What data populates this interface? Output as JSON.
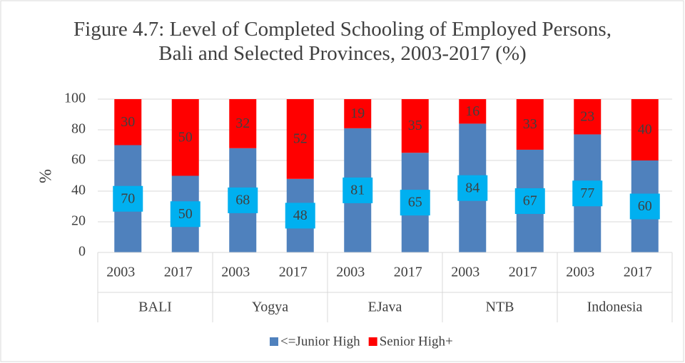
{
  "chart_data": {
    "type": "stacked_bar",
    "title": "Figure 4.7: Level of Completed Schooling of Employed Persons, Bali and Selected Provinces, 2003-2017 (%)",
    "y_label": "%",
    "categories": [
      "2003",
      "2017",
      "2003",
      "2017",
      "2003",
      "2017",
      "2003",
      "2017",
      "2003",
      "2017"
    ],
    "groups": [
      "BALI",
      "Yogya",
      "EJava",
      "NTB",
      "Indonesia"
    ],
    "series": [
      {
        "name": "<=Junior High",
        "color": "#4f81bd",
        "label_box": "#00b0f0",
        "values": [
          70,
          50,
          68,
          48,
          81,
          65,
          84,
          67,
          77,
          60
        ]
      },
      {
        "name": "Senior High+",
        "color": "#ff0000",
        "values": [
          30,
          50,
          32,
          52,
          19,
          35,
          16,
          33,
          23,
          40
        ]
      }
    ],
    "ylim": [
      0,
      100
    ],
    "yticks": [
      0,
      20,
      40,
      60,
      80,
      100
    ],
    "grid": true,
    "legend": "bottom"
  }
}
